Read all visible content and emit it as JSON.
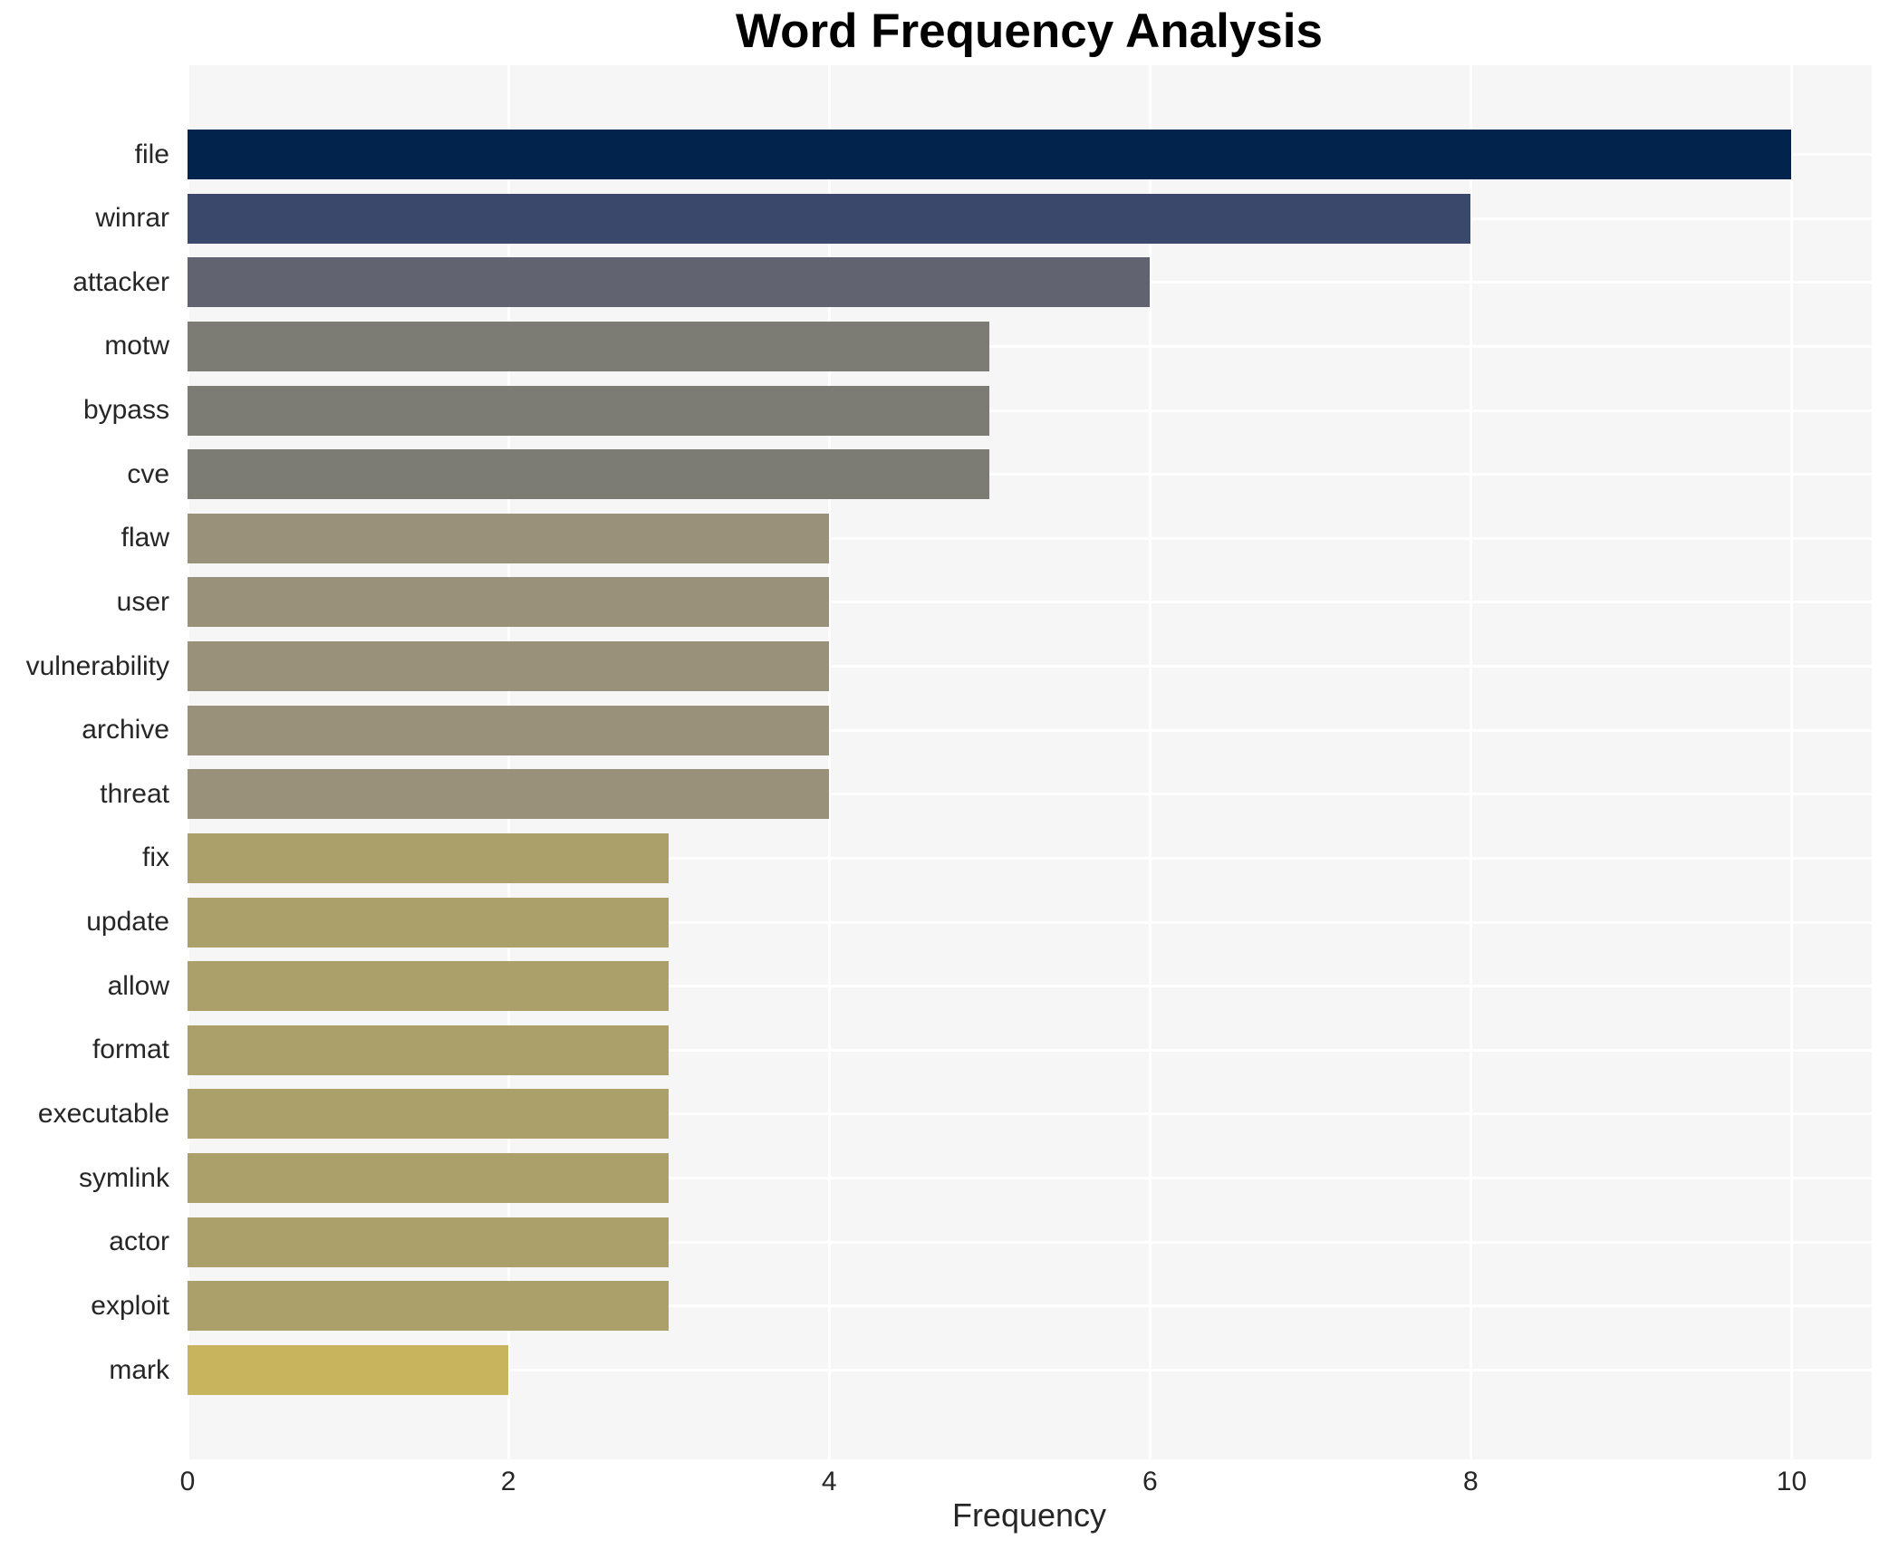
{
  "chart_data": {
    "type": "bar",
    "orientation": "horizontal",
    "title": "Word Frequency Analysis",
    "xlabel": "Frequency",
    "ylabel": "",
    "categories": [
      "file",
      "winrar",
      "attacker",
      "motw",
      "bypass",
      "cve",
      "flaw",
      "user",
      "vulnerability",
      "archive",
      "threat",
      "fix",
      "update",
      "allow",
      "format",
      "executable",
      "symlink",
      "actor",
      "exploit",
      "mark"
    ],
    "values": [
      10,
      8,
      6,
      5,
      5,
      5,
      4,
      4,
      4,
      4,
      4,
      3,
      3,
      3,
      3,
      3,
      3,
      3,
      3,
      2
    ],
    "bar_colors": [
      "#02234c",
      "#3a486b",
      "#616470",
      "#7d7c74",
      "#7d7c74",
      "#7d7c74",
      "#99917a",
      "#99917a",
      "#99917a",
      "#99917a",
      "#99917a",
      "#ab9f6a",
      "#ab9f6a",
      "#ab9f6a",
      "#ab9f6a",
      "#ab9f6a",
      "#ab9f6a",
      "#ab9f6a",
      "#ab9f6a",
      "#c8b45c"
    ],
    "xlim": [
      0,
      10.5
    ],
    "xticks": [
      0,
      2,
      4,
      6,
      8,
      10
    ],
    "grid": true,
    "legend": false,
    "plot_bg_color": "#f6f6f7",
    "grid_color": "#ffffff",
    "tick_label_color": "#262626",
    "title_color": "#000000"
  }
}
